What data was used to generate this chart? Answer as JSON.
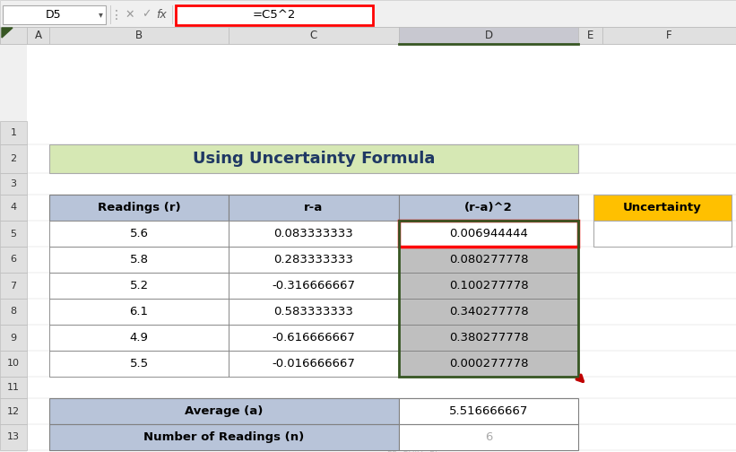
{
  "title": "Using Uncertainty Formula",
  "title_bg": "#d6e8b4",
  "title_color": "#1f3864",
  "formula_bar_text": "=C5^2",
  "cell_ref": "D5",
  "headers": [
    "Readings (r)",
    "r-a",
    "(r-a)^2"
  ],
  "header_bg": "#b8c4d9",
  "readings": [
    "5.6",
    "5.8",
    "5.2",
    "6.1",
    "4.9",
    "5.5"
  ],
  "r_minus_a": [
    "0.083333333",
    "0.283333333",
    "-0.316666667",
    "0.583333333",
    "-0.616666667",
    "-0.016666667"
  ],
  "r_minus_a_sq": [
    "0.006944444",
    "0.080277778",
    "0.100277778",
    "0.340277778",
    "0.380277778",
    "0.000277778"
  ],
  "d_col_bg_row0": "#ffffff",
  "d_col_bg_rest": "#bfbfbf",
  "selected_border": "#ff0000",
  "avg_label": "Average (a)",
  "avg_value": "5.516666667",
  "n_label": "Number of Readings (n)",
  "n_value": "6",
  "uncertainty_label": "Uncertainty",
  "uncertainty_bg": "#ffc000",
  "bottom_header_bg": "#b8c4d9",
  "toolbar_bg": "#f0f0f0",
  "col_header_bg": "#e0e0e0",
  "d_col_header_bg": "#c8c8d0",
  "row_header_bg": "#e0e0e0",
  "arrow_color": "#c00000",
  "green_border": "#375623",
  "cell_border": "#808080",
  "watermark1": "exceldemy",
  "watermark2": "EL · DATA · BI",
  "bg_color": "#ffffff"
}
